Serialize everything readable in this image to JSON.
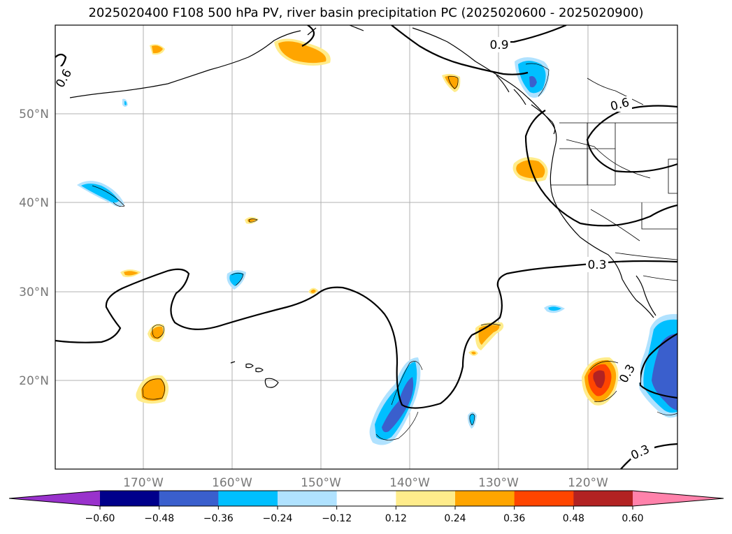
{
  "title": "2025020400 F108 500 hPa PV, river basin precipitation PC (2025020600 - 2025020900)",
  "lat_labels": [
    "50°N",
    "40°N",
    "30°N",
    "20°N"
  ],
  "lon_labels": [
    "170°W",
    "160°W",
    "150°W",
    "140°W",
    "130°W",
    "120°W"
  ],
  "contour_labels": [
    "0.6",
    "0.9",
    "0.6",
    "0.3",
    "0.3",
    "0.3"
  ],
  "colorbar": {
    "colors": [
      "#9932cc",
      "#00008b",
      "#3a5fcd",
      "#00bfff",
      "#b0e2ff",
      "#ffffff",
      "#ffec8b",
      "#ffa500",
      "#ff4500",
      "#b22222",
      "#ff82ab"
    ],
    "ticks": [
      "−0.60",
      "−0.48",
      "−0.36",
      "−0.24",
      "−0.12",
      "0.12",
      "0.24",
      "0.36",
      "0.48",
      "0.60"
    ]
  }
}
